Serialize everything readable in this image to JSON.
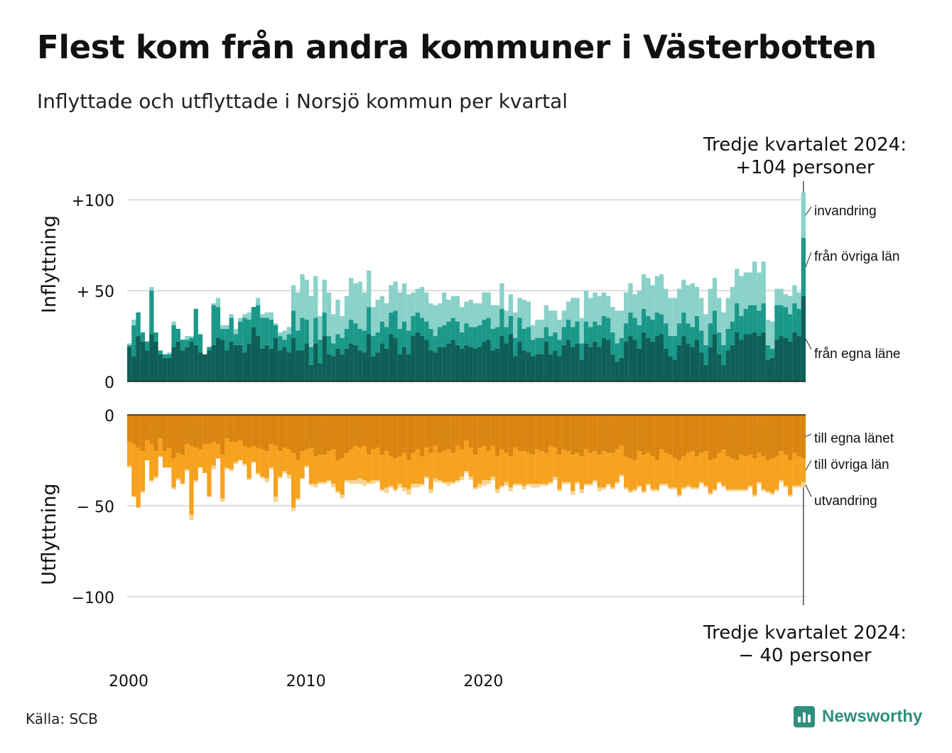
{
  "title": "Flest kom från andra kommuner i Västerbotten",
  "subtitle": "Inflyttade och utflyttade i Norsjö kommun per kvartal",
  "source": "Källa: SCB",
  "logo_text": "Newsworthy",
  "chart_data": {
    "type": "bar",
    "stacked": true,
    "x_start_year": 2000,
    "x_start_quarter": 1,
    "x_ticks": [
      2000,
      2010,
      2020
    ],
    "x_tick_labels": [
      "2000",
      "2010",
      "2020"
    ],
    "grid": true,
    "colors": {
      "in_egna": "#0e5f57",
      "in_ovriga": "#1a988a",
      "in_invandring": "#8ad2c9",
      "out_egna": "#d98510",
      "out_ovriga": "#f6a21e",
      "out_utvandring": "#f8d494"
    },
    "panels": [
      {
        "id": "in",
        "ylabel": "Inflyttning",
        "ylim": [
          0,
          104
        ],
        "yticks": [
          0,
          50,
          100
        ],
        "ytick_labels": [
          "0",
          "+ 50",
          "+100"
        ],
        "series": [
          {
            "name": "från egna läne",
            "values": [
              19,
              14,
              25,
              22,
              17,
              26,
              22,
              15,
              13,
              13,
              19,
              22,
              17,
              19,
              22,
              20,
              16,
              15,
              17,
              20,
              24,
              23,
              17,
              22,
              20,
              20,
              16,
              21,
              30,
              25,
              18,
              20,
              18,
              24,
              17,
              19,
              16,
              24,
              17,
              17,
              21,
              9,
              21,
              10,
              25,
              15,
              14,
              18,
              15,
              18,
              21,
              20,
              17,
              16,
              26,
              14,
              16,
              21,
              18,
              26,
              24,
              15,
              19,
              15,
              25,
              27,
              25,
              23,
              17,
              16,
              19,
              19,
              21,
              23,
              20,
              18,
              20,
              19,
              18,
              19,
              22,
              23,
              17,
              18,
              25,
              21,
              26,
              14,
              22,
              17,
              16,
              14,
              15,
              15,
              22,
              15,
              17,
              14,
              20,
              23,
              19,
              21,
              12,
              21,
              19,
              22,
              19,
              24,
              23,
              15,
              11,
              13,
              22,
              25,
              23,
              18,
              27,
              24,
              22,
              25,
              26,
              18,
              14,
              12,
              20,
              25,
              21,
              19,
              23,
              16,
              9,
              19,
              26,
              15,
              9,
              17,
              20,
              27,
              23,
              26,
              26,
              27,
              25,
              27,
              12,
              13,
              23,
              25,
              24,
              22,
              27,
              25,
              47
            ]
          },
          {
            "name": "från övriga län",
            "values": [
              1,
              17,
              13,
              5,
              5,
              24,
              5,
              2,
              2,
              2,
              12,
              7,
              6,
              4,
              2,
              20,
              10,
              0,
              2,
              22,
              17,
              6,
              12,
              13,
              6,
              13,
              19,
              13,
              11,
              17,
              17,
              15,
              16,
              7,
              8,
              4,
              10,
              15,
              11,
              18,
              13,
              10,
              14,
              13,
              13,
              10,
              7,
              8,
              9,
              11,
              13,
              12,
              12,
              12,
              15,
              11,
              11,
              12,
              12,
              12,
              15,
              14,
              14,
              13,
              11,
              11,
              10,
              10,
              12,
              9,
              11,
              12,
              12,
              12,
              13,
              9,
              12,
              11,
              12,
              12,
              12,
              12,
              12,
              12,
              15,
              9,
              10,
              10,
              13,
              12,
              14,
              9,
              9,
              9,
              8,
              10,
              10,
              9,
              10,
              11,
              11,
              12,
              9,
              12,
              11,
              11,
              12,
              12,
              12,
              12,
              10,
              11,
              10,
              13,
              12,
              13,
              13,
              12,
              12,
              13,
              11,
              14,
              11,
              13,
              12,
              13,
              11,
              11,
              13,
              12,
              11,
              13,
              13,
              12,
              11,
              12,
              13,
              16,
              13,
              14,
              16,
              15,
              14,
              16,
              8,
              5,
              19,
              17,
              17,
              15,
              16,
              15,
              32
            ]
          },
          {
            "name": "invandring",
            "values": [
              1,
              3,
              0,
              0,
              0,
              2,
              0,
              0,
              0,
              1,
              2,
              0,
              0,
              2,
              1,
              0,
              0,
              0,
              0,
              1,
              5,
              2,
              2,
              2,
              3,
              2,
              2,
              4,
              0,
              4,
              2,
              3,
              4,
              1,
              2,
              5,
              4,
              14,
              21,
              24,
              22,
              28,
              23,
              13,
              18,
              24,
              16,
              19,
              12,
              18,
              23,
              22,
              26,
              21,
              20,
              16,
              18,
              14,
              13,
              15,
              16,
              20,
              21,
              20,
              13,
              13,
              17,
              16,
              14,
              17,
              13,
              18,
              12,
              12,
              14,
              14,
              12,
              15,
              13,
              12,
              15,
              14,
              13,
              12,
              14,
              9,
              12,
              14,
              11,
              16,
              14,
              8,
              10,
              10,
              12,
              14,
              12,
              11,
              9,
              10,
              16,
              13,
              14,
              17,
              16,
              16,
              16,
              13,
              12,
              14,
              18,
              15,
              17,
              16,
              13,
              19,
              19,
              21,
              19,
              20,
              22,
              19,
              21,
              21,
              19,
              18,
              21,
              24,
              16,
              18,
              17,
              19,
              18,
              19,
              18,
              17,
              19,
              19,
              22,
              20,
              18,
              24,
              21,
              23,
              14,
              15,
              9,
              9,
              7,
              10,
              10,
              9,
              25
            ]
          }
        ],
        "annotations": [
          {
            "text": "invandring",
            "series": "invandring"
          },
          {
            "text": "från övriga län",
            "series": "från övriga län"
          },
          {
            "text": "från egna läne",
            "series": "från egna läne"
          }
        ],
        "callout": [
          "Tredje kvartalet 2024:",
          "+104 personer"
        ]
      },
      {
        "id": "out",
        "ylabel": "Utflyttning",
        "ylim": [
          -104,
          0
        ],
        "yticks": [
          0,
          -50,
          -100
        ],
        "ytick_labels": [
          "0",
          "− 50",
          "−100"
        ],
        "series": [
          {
            "name": "till egna länet",
            "values": [
              -15,
              -16,
              -18,
              -20,
              -14,
              -16,
              -20,
              -13,
              -20,
              -18,
              -24,
              -21,
              -22,
              -16,
              -17,
              -18,
              -19,
              -16,
              -16,
              -15,
              -16,
              -22,
              -13,
              -15,
              -15,
              -14,
              -17,
              -18,
              -17,
              -18,
              -19,
              -20,
              -16,
              -17,
              -20,
              -18,
              -19,
              -21,
              -25,
              -20,
              -19,
              -18,
              -23,
              -22,
              -22,
              -20,
              -19,
              -25,
              -24,
              -21,
              -19,
              -17,
              -18,
              -17,
              -22,
              -19,
              -18,
              -22,
              -20,
              -23,
              -24,
              -23,
              -21,
              -25,
              -21,
              -19,
              -23,
              -18,
              -21,
              -17,
              -21,
              -20,
              -19,
              -21,
              -17,
              -19,
              -14,
              -18,
              -22,
              -18,
              -17,
              -20,
              -17,
              -23,
              -19,
              -21,
              -23,
              -18,
              -20,
              -20,
              -21,
              -22,
              -19,
              -20,
              -21,
              -17,
              -18,
              -22,
              -19,
              -20,
              -22,
              -21,
              -23,
              -19,
              -21,
              -20,
              -22,
              -20,
              -21,
              -21,
              -19,
              -17,
              -23,
              -24,
              -25,
              -20,
              -22,
              -21,
              -23,
              -25,
              -19,
              -21,
              -22,
              -24,
              -25,
              -23,
              -21,
              -20,
              -23,
              -21,
              -20,
              -25,
              -24,
              -21,
              -19,
              -23,
              -24,
              -25,
              -22,
              -23,
              -22,
              -24,
              -21,
              -23,
              -25,
              -24,
              -23,
              -20,
              -22,
              -25,
              -21,
              -23,
              -24
            ]
          },
          {
            "name": "till övriga län",
            "values": [
              -13,
              -29,
              -33,
              -22,
              -11,
              -20,
              -14,
              -10,
              -9,
              -11,
              -16,
              -14,
              -16,
              -14,
              -38,
              -18,
              -10,
              -16,
              -29,
              -13,
              -8,
              -24,
              -16,
              -15,
              -11,
              -11,
              -10,
              -17,
              -9,
              -14,
              -15,
              -15,
              -13,
              -28,
              -14,
              -13,
              -14,
              -30,
              -21,
              -15,
              -9,
              -20,
              -15,
              -15,
              -15,
              -16,
              -19,
              -17,
              -20,
              -15,
              -17,
              -19,
              -17,
              -19,
              -15,
              -17,
              -18,
              -19,
              -20,
              -16,
              -17,
              -15,
              -19,
              -16,
              -17,
              -19,
              -15,
              -16,
              -20,
              -18,
              -15,
              -17,
              -18,
              -16,
              -19,
              -15,
              -17,
              -16,
              -18,
              -20,
              -19,
              -16,
              -17,
              -18,
              -20,
              -16,
              -17,
              -20,
              -18,
              -19,
              -17,
              -16,
              -19,
              -18,
              -17,
              -20,
              -16,
              -19,
              -18,
              -17,
              -20,
              -16,
              -18,
              -19,
              -17,
              -16,
              -18,
              -20,
              -17,
              -19,
              -18,
              -16,
              -17,
              -18,
              -16,
              -19,
              -20,
              -17,
              -18,
              -16,
              -19,
              -17,
              -18,
              -16,
              -19,
              -17,
              -18,
              -20,
              -17,
              -16,
              -19,
              -18,
              -17,
              -16,
              -20,
              -18,
              -17,
              -16,
              -19,
              -18,
              -17,
              -20,
              -16,
              -18,
              -17,
              -19,
              -18,
              -16,
              -17,
              -19,
              -18,
              -16,
              -13
            ]
          },
          {
            "name": "utvandring",
            "values": [
              -1,
              0,
              0,
              -1,
              0,
              -1,
              -1,
              0,
              0,
              0,
              -1,
              -1,
              0,
              -1,
              -3,
              -1,
              0,
              0,
              0,
              -2,
              0,
              -2,
              -1,
              -1,
              -1,
              0,
              -1,
              -1,
              0,
              -1,
              -1,
              -2,
              -1,
              -3,
              -1,
              -1,
              -2,
              -2,
              -1,
              0,
              -1,
              -1,
              -2,
              -1,
              -1,
              -1,
              -2,
              -1,
              -2,
              -1,
              -2,
              -2,
              -3,
              -3,
              -1,
              -2,
              -1,
              -1,
              -3,
              -1,
              -1,
              -2,
              -2,
              -3,
              -2,
              -2,
              -1,
              -1,
              -2,
              -2,
              -1,
              -1,
              -2,
              -1,
              -1,
              -2,
              -1,
              -2,
              -1,
              -2,
              -3,
              -2,
              -2,
              -2,
              -1,
              -2,
              -2,
              -1,
              -1,
              -2,
              -1,
              -2,
              -2,
              -1,
              -1,
              -1,
              -2,
              -1,
              -1,
              -1,
              -2,
              -1,
              -2,
              -1,
              -1,
              -1,
              -2,
              -1,
              -1,
              -1,
              -1,
              -1,
              -1,
              -1,
              -1,
              -1,
              -1,
              -1,
              -1,
              -1,
              -1,
              -1,
              -1,
              -1,
              -1,
              -1,
              -1,
              -1,
              -1,
              -1,
              -1,
              -1,
              -1,
              -1,
              -1,
              -1,
              -1,
              -1,
              -1,
              -1,
              -1,
              -1,
              -1,
              -1,
              -1,
              -1,
              -1,
              -1,
              -1,
              -1,
              -1,
              -1,
              -3
            ]
          }
        ],
        "annotations": [
          {
            "text": "till egna länet",
            "series": "till egna länet"
          },
          {
            "text": "till övriga län",
            "series": "till övriga län"
          },
          {
            "text": "utvandring",
            "series": "utvandring"
          }
        ],
        "callout": [
          "Tredje kvartalet 2024:",
          "− 40 personer"
        ]
      }
    ]
  }
}
